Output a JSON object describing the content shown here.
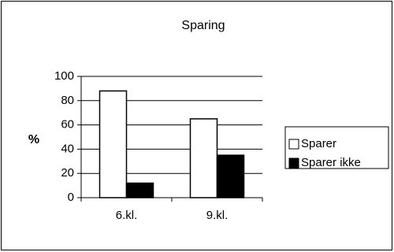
{
  "chart_data": {
    "type": "bar",
    "title": "Sparing",
    "xlabel": "",
    "ylabel": "%",
    "categories": [
      "6.kl.",
      "9.kl."
    ],
    "series": [
      {
        "name": "Sparer",
        "values": [
          88,
          65
        ],
        "color": "#ffffff"
      },
      {
        "name": "Sparer ikke",
        "values": [
          12,
          35
        ],
        "color": "#000000"
      }
    ],
    "ylim": [
      0,
      100
    ],
    "yticks": [
      0,
      20,
      40,
      60,
      80,
      100
    ],
    "grid": true,
    "legend": "right"
  }
}
